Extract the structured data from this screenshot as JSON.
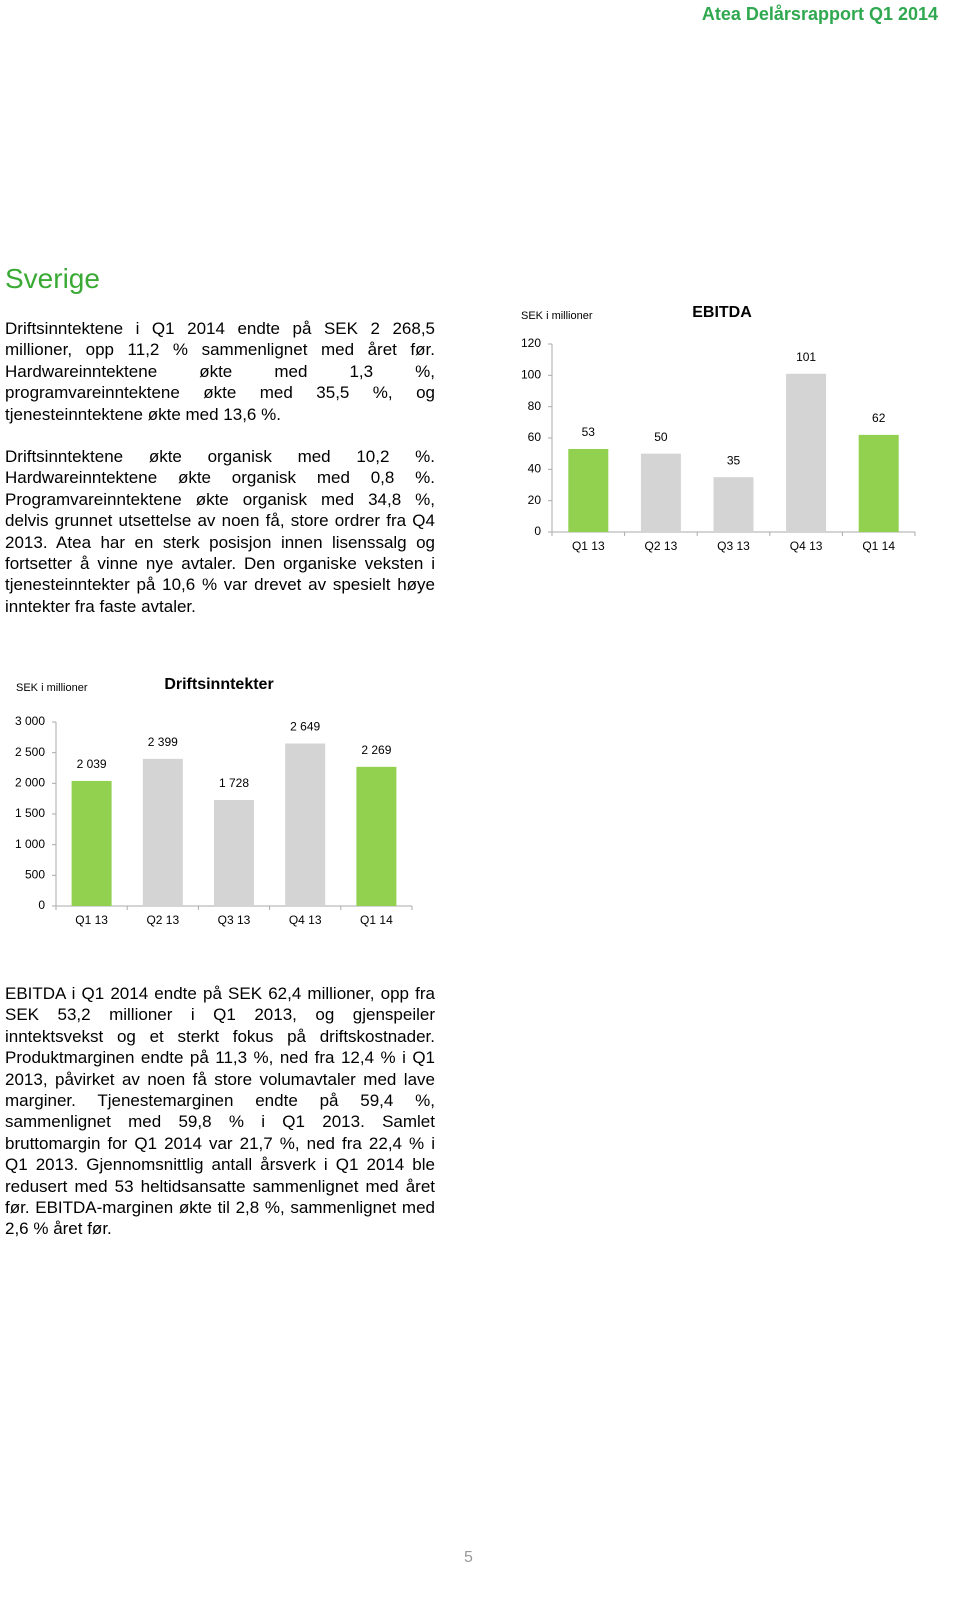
{
  "header": {
    "title": "Atea Delårsrapport Q1 2014"
  },
  "heading": "Sverige",
  "paragraphs": [
    "Driftsinntektene i Q1 2014 endte på SEK 2 268,5 millioner, opp 11,2 % sammenlignet med året før. Hardwareinntektene økte med 1,3 %, programvareinntektene økte med 35,5 %, og tjenesteinntektene økte med 13,6 %.",
    "Driftsinntektene økte organisk med 10,2 %. Hardwareinntektene økte organisk med 0,8 %. Programvareinntektene økte organisk med 34,8 %, delvis grunnet utsettelse av noen få, store ordrer fra Q4 2013. Atea har en sterk posisjon innen lisenssalg og fortsetter å vinne nye avtaler. Den organiske veksten i tjenesteinntekter på 10,6 % var drevet av spesielt høye inntekter fra faste avtaler.",
    "EBITDA i Q1 2014 endte på SEK 62,4 millioner, opp fra SEK 53,2 millioner i Q1 2013, og gjenspeiler inntektsvekst og et sterkt fokus på driftskostnader. Produktmarginen endte på 11,3 %, ned fra 12,4 % i Q1 2013, påvirket av noen få store volumavtaler med lave marginer. Tjenestemarginen endte på 59,4 %, sammenlignet med 59,8 % i Q1 2013. Samlet bruttomargin for Q1 2014 var 21,7 %, ned fra 22,4 % i Q1 2013. Gjennomsnittlig antall årsverk i Q1 2014 ble redusert med 53 heltidsansatte sammenlignet med året før. EBITDA-marginen økte til 2,8 %, sammenlignet med 2,6 % året før."
  ],
  "chart_data": [
    {
      "type": "bar",
      "title": "EBITDA",
      "y_label": "SEK i millioner",
      "categories": [
        "Q1 13",
        "Q2 13",
        "Q3 13",
        "Q4 13",
        "Q1 14"
      ],
      "values": [
        53,
        50,
        35,
        101,
        62
      ],
      "colors": [
        "#92d050",
        "#d4d4d4",
        "#d4d4d4",
        "#d4d4d4",
        "#92d050"
      ],
      "ylim": [
        0,
        120
      ],
      "yticks": [
        0,
        20,
        40,
        60,
        80,
        100,
        120
      ],
      "grid": false
    },
    {
      "type": "bar",
      "title": "Driftsinntekter",
      "y_label": "SEK i millioner",
      "categories": [
        "Q1 13",
        "Q2 13",
        "Q3 13",
        "Q4 13",
        "Q1 14"
      ],
      "values": [
        2039,
        2399,
        1728,
        2649,
        2269
      ],
      "value_labels": [
        "2 039",
        "2 399",
        "1 728",
        "2 649",
        "2 269"
      ],
      "colors": [
        "#92d050",
        "#d4d4d4",
        "#d4d4d4",
        "#d4d4d4",
        "#92d050"
      ],
      "ylim": [
        0,
        3000
      ],
      "yticks": [
        0,
        500,
        {
          "value": 1000,
          "label": "1 000"
        },
        {
          "value": 1500,
          "label": "1 500"
        },
        {
          "value": 2000,
          "label": "2 000"
        },
        {
          "value": 2500,
          "label": "2 500"
        },
        {
          "value": 3000,
          "label": "3 000"
        }
      ],
      "grid": false
    }
  ],
  "page_number": "5"
}
